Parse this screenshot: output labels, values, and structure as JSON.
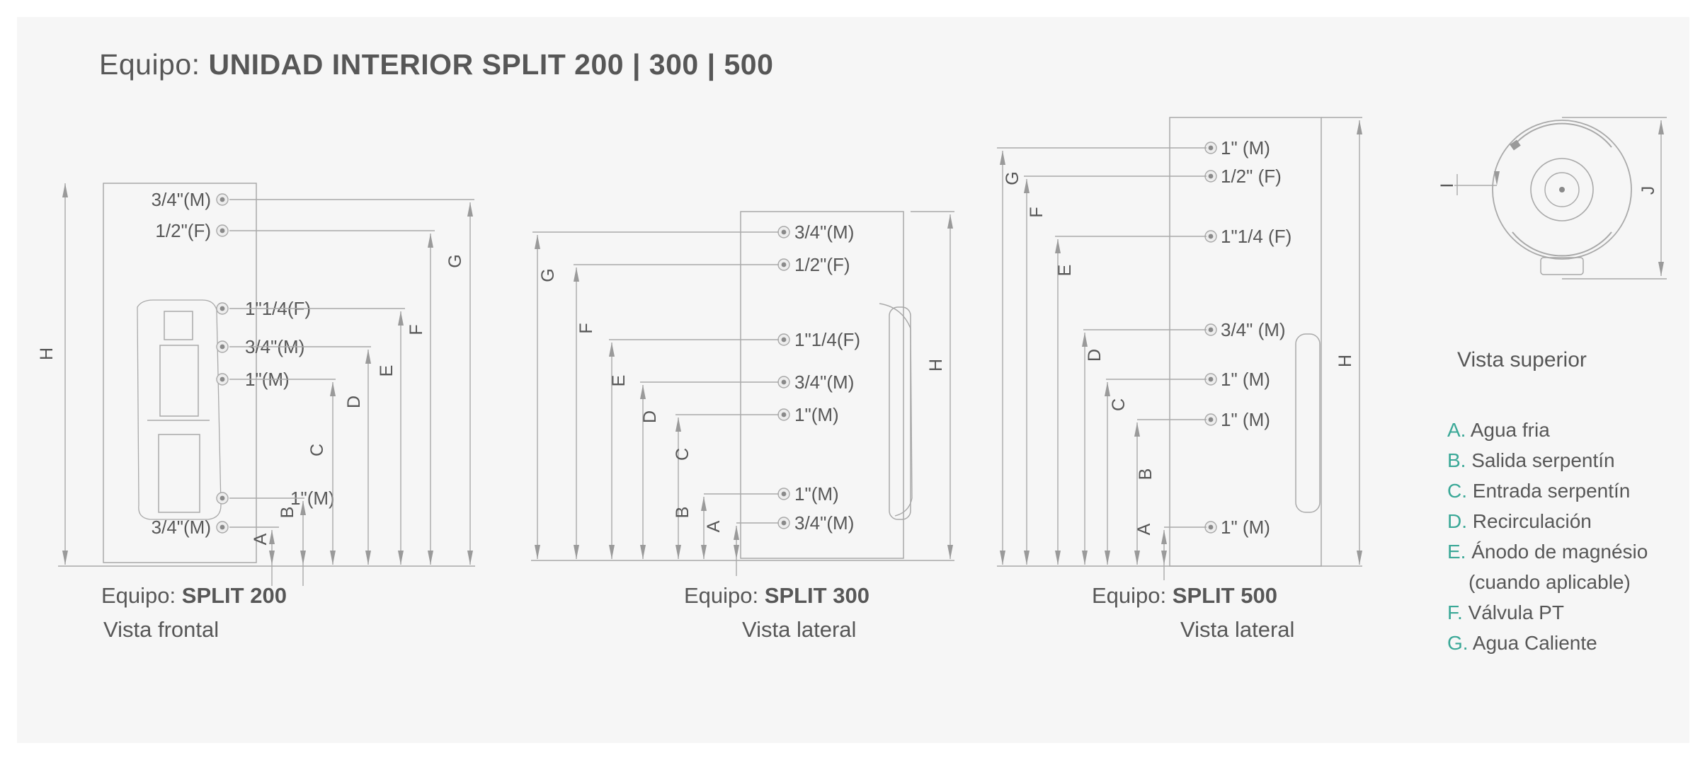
{
  "title": {
    "prefix": "Equipo:",
    "bold": "UNIDAD INTERIOR SPLIT 200 | 300 | 500"
  },
  "units": [
    {
      "equipo_prefix": "Equipo:",
      "equipo_bold": "SPLIT 200",
      "view": "Vista frontal",
      "connections": [
        "3/4\"(M)",
        "1/2\"(F)",
        "1\"1/4(F)",
        "3/4\"(M)",
        "1\"(M)",
        "1\"(M)",
        "3/4\"(M)"
      ],
      "dimension_letters": [
        "H",
        "G",
        "F",
        "E",
        "D",
        "C",
        "B",
        "A"
      ]
    },
    {
      "equipo_prefix": "Equipo:",
      "equipo_bold": "SPLIT 300",
      "view": "Vista lateral",
      "connections": [
        "3/4\"(M)",
        "1/2\"(F)",
        "1\"1/4(F)",
        "3/4\"(M)",
        "1\"(M)",
        "1\"(M)",
        "3/4\"(M)"
      ],
      "dimension_letters": [
        "G",
        "F",
        "E",
        "D",
        "C",
        "B",
        "A",
        "H"
      ]
    },
    {
      "equipo_prefix": "Equipo:",
      "equipo_bold": "SPLIT 500",
      "view": "Vista lateral",
      "connections": [
        "1\" (M)",
        "1/2\" (F)",
        "1\"1/4 (F)",
        "3/4\" (M)",
        "1\" (M)",
        "1\" (M)",
        "1\" (M)"
      ],
      "dimension_letters": [
        "G",
        "F",
        "E",
        "D",
        "C",
        "B",
        "A",
        "H"
      ]
    }
  ],
  "top_view": {
    "label": "Vista superior",
    "dimension_letters": [
      "I",
      "J"
    ]
  },
  "legend": [
    {
      "key": "A.",
      "text": "Agua fria"
    },
    {
      "key": "B.",
      "text": "Salida serpentín"
    },
    {
      "key": "C.",
      "text": "Entrada serpentín"
    },
    {
      "key": "D.",
      "text": "Recirculación"
    },
    {
      "key": "E.",
      "text": "Ánodo de magnésio"
    },
    {
      "key": "",
      "text": "(cuando aplicable)"
    },
    {
      "key": "F.",
      "text": "Válvula PT"
    },
    {
      "key": "G.",
      "text": "Agua Caliente"
    }
  ],
  "colors": {
    "line": "#a9a9a9",
    "text": "#575757",
    "accent": "#3aa897",
    "background": "#f6f6f6"
  }
}
